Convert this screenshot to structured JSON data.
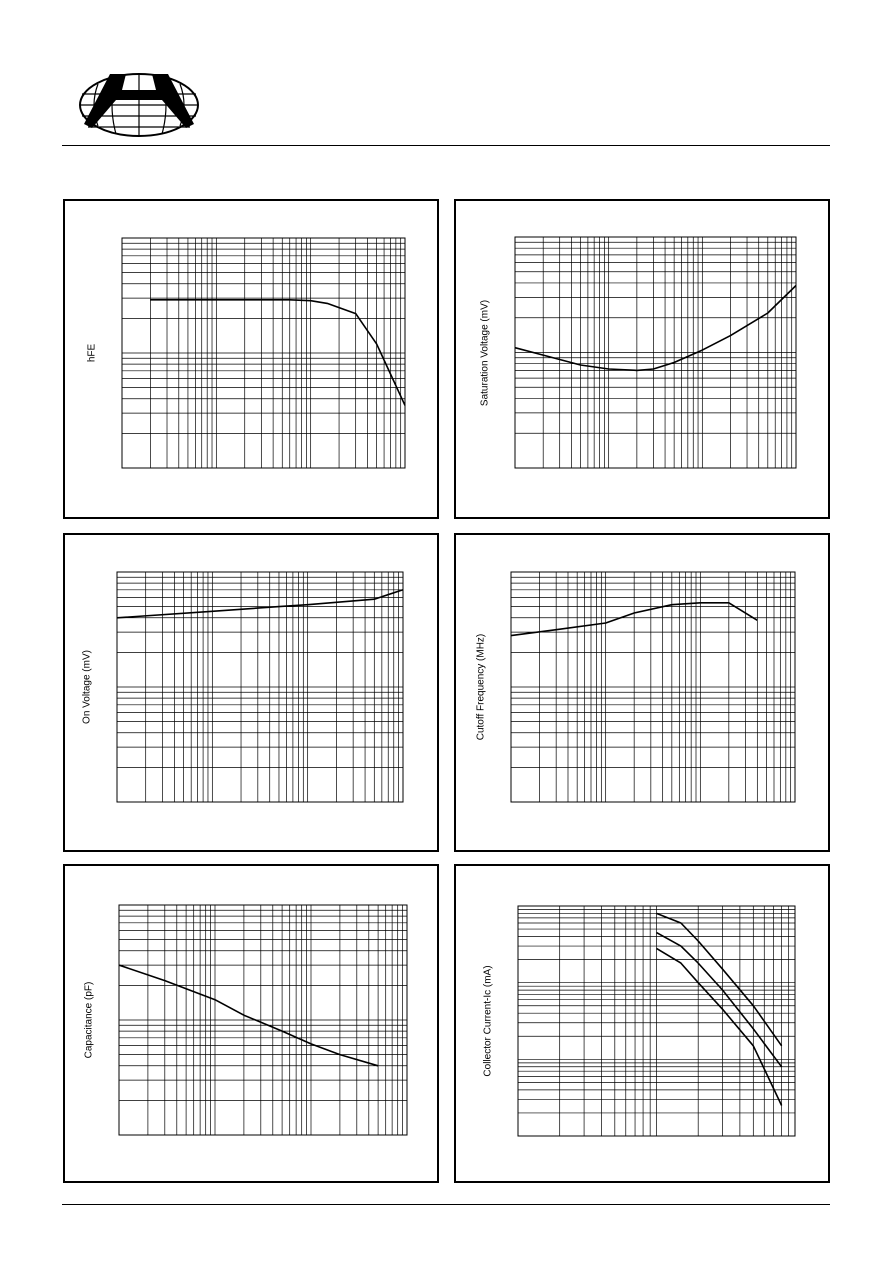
{
  "colors": {
    "ink": "#000000",
    "paper": "#ffffff"
  },
  "logo": {
    "icon": "company-logo-globe-icon"
  },
  "chart_data": [
    {
      "type": "line",
      "ylabel": "hFE",
      "xscale": "log",
      "yscale": "log",
      "grid": true,
      "xlim": [
        1,
        1000
      ],
      "ylim": [
        10,
        1000
      ],
      "series": [
        {
          "x": [
            2,
            10,
            30,
            60,
            100,
            150,
            300,
            500,
            1000
          ],
          "y": [
            290,
            290,
            290,
            290,
            285,
            270,
            220,
            120,
            35
          ]
        }
      ]
    },
    {
      "type": "line",
      "ylabel": "Saturation Voltage (mV)",
      "xscale": "log",
      "yscale": "log",
      "grid": true,
      "xlim": [
        1,
        1000
      ],
      "ylim": [
        10,
        1000
      ],
      "series": [
        {
          "x": [
            1,
            2,
            5,
            10,
            20,
            30,
            50,
            100,
            200,
            500,
            1000
          ],
          "y": [
            110,
            95,
            78,
            72,
            70,
            72,
            82,
            105,
            140,
            220,
            380
          ]
        }
      ]
    },
    {
      "type": "line",
      "ylabel": "On Voltage (mV)",
      "xscale": "log",
      "yscale": "log",
      "grid": true,
      "xlim": [
        1,
        1000
      ],
      "ylim": [
        10,
        1000
      ],
      "series": [
        {
          "x": [
            1,
            10,
            50,
            100,
            200,
            500,
            1000
          ],
          "y": [
            400,
            455,
            500,
            520,
            545,
            580,
            700
          ]
        }
      ]
    },
    {
      "type": "line",
      "ylabel": "Cutoff Frequency (MHz)",
      "xscale": "log",
      "yscale": "log",
      "grid": true,
      "xlim": [
        1,
        1000
      ],
      "ylim": [
        10,
        1000
      ],
      "series": [
        {
          "x": [
            1,
            3,
            10,
            20,
            50,
            100,
            200,
            400
          ],
          "y": [
            280,
            315,
            360,
            440,
            520,
            540,
            540,
            380
          ]
        }
      ]
    },
    {
      "type": "line",
      "ylabel": "Capacitance (pF)",
      "xscale": "log",
      "yscale": "log",
      "grid": true,
      "xlim": [
        0.1,
        100
      ],
      "ylim": [
        1,
        100
      ],
      "series": [
        {
          "x": [
            0.1,
            0.3,
            1,
            2,
            5,
            10,
            20,
            50
          ],
          "y": [
            30,
            22,
            15,
            11,
            8,
            6.2,
            5,
            4
          ]
        }
      ]
    },
    {
      "type": "line",
      "ylabel": "Collector Current-Ic (mA)",
      "xscale": "log",
      "yscale": "log",
      "grid": true,
      "xlim": [
        1,
        100
      ],
      "ylim": [
        0.1,
        100
      ],
      "series": [
        {
          "x": [
            10,
            15,
            20,
            30,
            50,
            80
          ],
          "y": [
            80,
            60,
            35,
            15,
            5,
            1.5
          ]
        },
        {
          "x": [
            10,
            15,
            20,
            30,
            50,
            80
          ],
          "y": [
            45,
            30,
            18,
            8,
            2.5,
            0.8
          ]
        },
        {
          "x": [
            10,
            15,
            20,
            30,
            50,
            80
          ],
          "y": [
            28,
            18,
            10,
            4.5,
            1.5,
            0.25
          ]
        }
      ]
    }
  ]
}
